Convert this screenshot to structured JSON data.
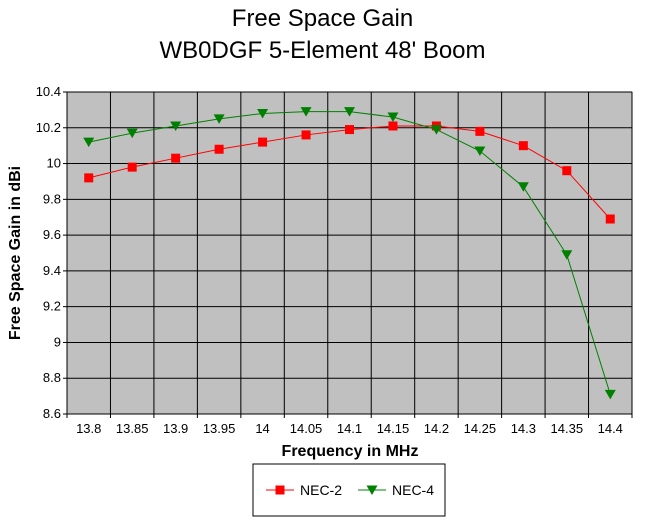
{
  "chart_data": {
    "type": "line",
    "title": "Free Space Gain",
    "subtitle": "WB0DGF 5-Element 48' Boom",
    "xlabel": "Frequency in MHz",
    "ylabel": "Free Space Gain in dBi",
    "categories": [
      "13.8",
      "13.85",
      "13.9",
      "13.95",
      "14",
      "14.05",
      "14.1",
      "14.15",
      "14.2",
      "14.25",
      "14.3",
      "14.35",
      "14.4"
    ],
    "ylim": [
      8.6,
      10.4
    ],
    "yticks": [
      "8.6",
      "8.8",
      "9",
      "9.2",
      "9.4",
      "9.6",
      "9.8",
      "10",
      "10.2",
      "10.4"
    ],
    "grid": true,
    "legend_position": "bottom",
    "series": [
      {
        "name": "NEC-2",
        "color": "#ff0000",
        "marker": "square",
        "values": [
          9.92,
          9.98,
          10.03,
          10.08,
          10.12,
          10.16,
          10.19,
          10.21,
          10.21,
          10.18,
          10.1,
          9.96,
          9.69
        ]
      },
      {
        "name": "NEC-4",
        "color": "#008000",
        "marker": "triangle-down",
        "values": [
          10.12,
          10.17,
          10.21,
          10.25,
          10.28,
          10.29,
          10.29,
          10.26,
          10.19,
          10.07,
          9.87,
          9.49,
          8.71
        ]
      }
    ]
  }
}
